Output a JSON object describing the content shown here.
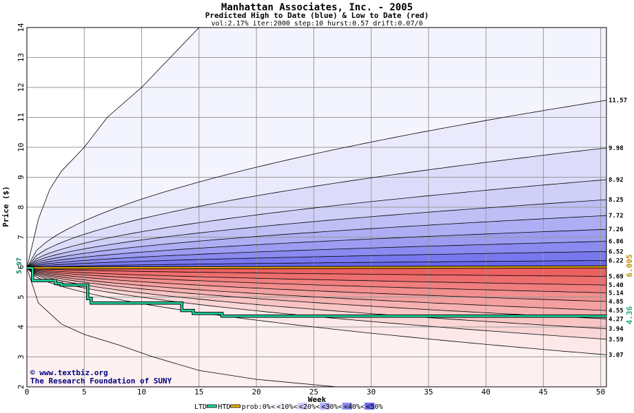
{
  "chart_data": {
    "type": "area",
    "title": "Manhattan Associates, Inc. - 2005",
    "subtitle": "Predicted High to Date (blue) &  Low to Date (red)",
    "params": "vol:2.17% iter:2000 step:10 hurst:0.57 drift:0.07/0",
    "xlabel": "Week",
    "ylabel": "Price ($)",
    "xlim": [
      0,
      50.5
    ],
    "ylim": [
      2,
      14
    ],
    "xticks": [
      0,
      5,
      10,
      15,
      20,
      25,
      30,
      35,
      40,
      45,
      50
    ],
    "yticks": [
      2,
      3,
      4,
      5,
      6,
      7,
      8,
      9,
      10,
      11,
      12,
      13,
      14
    ],
    "grid": true,
    "start_price": 5.97,
    "start_label": "5.97",
    "htd_end_label": "6.005",
    "ltd_end_label": "4.36",
    "upper_bands": [
      {
        "end": 11.57,
        "label": "11.57"
      },
      {
        "end": 9.98,
        "label": "9.98"
      },
      {
        "end": 8.92,
        "label": "8.92"
      },
      {
        "end": 8.25,
        "label": "8.25"
      },
      {
        "end": 7.72,
        "label": "7.72"
      },
      {
        "end": 7.26,
        "label": "7.26"
      },
      {
        "end": 6.86,
        "label": "6.86"
      },
      {
        "end": 6.52,
        "label": "6.52"
      },
      {
        "end": 6.22,
        "label": "6.22"
      }
    ],
    "lower_bands": [
      {
        "end": 5.69,
        "label": "5.69"
      },
      {
        "end": 5.4,
        "label": "5.40"
      },
      {
        "end": 5.14,
        "label": "5.14"
      },
      {
        "end": 4.85,
        "label": "4.85"
      },
      {
        "end": 4.55,
        "label": "4.55"
      },
      {
        "end": 4.27,
        "label": "4.27"
      },
      {
        "end": 3.94,
        "label": "3.94"
      },
      {
        "end": 3.59,
        "label": "3.59"
      },
      {
        "end": 3.07,
        "label": "3.07"
      }
    ],
    "outer_upper_curve": {
      "x": [
        0,
        1,
        2,
        3,
        5,
        7,
        10,
        13,
        15
      ],
      "y": [
        5.97,
        7.6,
        8.6,
        9.2,
        10.0,
        11.0,
        12.0,
        13.2,
        14.0
      ]
    },
    "outer_lower_curve": {
      "x": [
        0,
        1,
        3,
        5,
        8,
        11,
        15,
        20,
        27,
        35,
        45,
        50.5
      ],
      "y": [
        5.97,
        4.8,
        4.1,
        3.75,
        3.4,
        3.0,
        2.55,
        2.25,
        2.0,
        1.85,
        1.7,
        1.6
      ]
    },
    "htd": {
      "name": "HTD",
      "color": "#f0b000",
      "x": [
        0,
        50.5
      ],
      "y": [
        5.97,
        6.005
      ]
    },
    "ltd": {
      "name": "LTD",
      "color": "#20d8a0",
      "x": [
        0,
        0.5,
        0.5,
        2.5,
        2.5,
        3,
        3,
        5.3,
        5.3,
        5.6,
        5.6,
        13.5,
        13.5,
        14.5,
        14.5,
        17,
        17,
        50.5
      ],
      "y": [
        5.97,
        5.97,
        5.55,
        5.55,
        5.45,
        5.45,
        5.4,
        5.4,
        4.95,
        4.95,
        4.8,
        4.8,
        4.55,
        4.55,
        4.45,
        4.45,
        4.36,
        4.36
      ]
    },
    "legend": {
      "ltd": "LTD",
      "htd": "HTD",
      "prob_label": "prob:0%",
      "entries": [
        "<",
        "<10%",
        "<",
        "<20%",
        "<",
        "<30%",
        "<",
        "<40%",
        "<",
        "<50%"
      ]
    },
    "credit1": "© www.textbiz.org",
    "credit2": "The Research Foundation of SUNY",
    "colors": {
      "blue_bands": [
        "#eaeafc",
        "#dcdcfa",
        "#cfcff8",
        "#bfbff6",
        "#aeaef4",
        "#9c9cf2",
        "#8a8af0",
        "#7878ee",
        "#6666ec"
      ],
      "red_bands": [
        "#fce8e8",
        "#fad6d6",
        "#f8c4c4",
        "#f6b2b2",
        "#f4a0a0",
        "#f28e8e",
        "#f07e7e",
        "#ee6e6e",
        "#ec6060"
      ],
      "grid": "#999999",
      "axis": "#000000"
    }
  }
}
